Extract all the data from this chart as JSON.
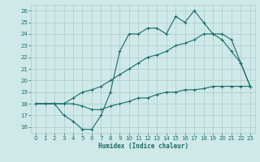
{
  "title": "",
  "xlabel": "Humidex (Indice chaleur)",
  "bg_color": "#cfe8e8",
  "grid_color": "#aacccc",
  "line_color": "#1a6b6b",
  "xlim": [
    -0.5,
    23.5
  ],
  "ylim": [
    15.5,
    26.5
  ],
  "xticks": [
    0,
    1,
    2,
    3,
    4,
    5,
    6,
    7,
    8,
    9,
    10,
    11,
    12,
    13,
    14,
    15,
    16,
    17,
    18,
    19,
    20,
    21,
    22,
    23
  ],
  "yticks": [
    16,
    17,
    18,
    19,
    20,
    21,
    22,
    23,
    24,
    25,
    26
  ],
  "series": [
    {
      "x": [
        0,
        1,
        2,
        3,
        4,
        5,
        6,
        7,
        8,
        9,
        10,
        11,
        12,
        13,
        14,
        15,
        16,
        17,
        18,
        19,
        20,
        21,
        22,
        23
      ],
      "y": [
        18,
        18,
        18,
        17,
        16.5,
        15.8,
        15.8,
        17,
        19,
        22.5,
        24,
        24,
        24.5,
        24.5,
        24,
        25.5,
        25,
        26,
        25,
        24,
        23.5,
        22.5,
        21.5,
        19.5
      ]
    },
    {
      "x": [
        0,
        1,
        2,
        3,
        4,
        5,
        6,
        7,
        8,
        9,
        10,
        11,
        12,
        13,
        14,
        15,
        16,
        17,
        18,
        19,
        20,
        21,
        22,
        23
      ],
      "y": [
        18,
        18,
        18,
        18,
        18.5,
        19,
        19.2,
        19.5,
        20,
        20.5,
        21,
        21.5,
        22,
        22.2,
        22.5,
        23,
        23.2,
        23.5,
        24,
        24,
        24,
        23.5,
        21.5,
        19.5
      ]
    },
    {
      "x": [
        0,
        1,
        2,
        3,
        4,
        5,
        6,
        7,
        8,
        9,
        10,
        11,
        12,
        13,
        14,
        15,
        16,
        17,
        18,
        19,
        20,
        21,
        22,
        23
      ],
      "y": [
        18,
        18,
        18,
        18,
        18,
        17.8,
        17.5,
        17.5,
        17.8,
        18,
        18.2,
        18.5,
        18.5,
        18.8,
        19,
        19,
        19.2,
        19.2,
        19.3,
        19.5,
        19.5,
        19.5,
        19.5,
        19.5
      ]
    }
  ],
  "figsize": [
    3.2,
    2.0
  ],
  "dpi": 100
}
